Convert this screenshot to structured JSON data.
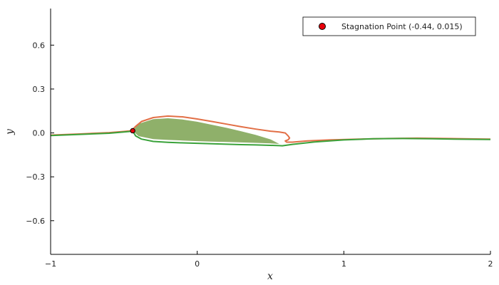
{
  "chart_data": {
    "type": "line",
    "xlabel": "x",
    "ylabel": "y",
    "xlim": [
      -1,
      2
    ],
    "ylim": [
      -0.83,
      0.85
    ],
    "x_ticks": [
      -1,
      0,
      1,
      2
    ],
    "x_tick_labels": [
      "−1",
      "0",
      "1",
      "2"
    ],
    "y_ticks": [
      -0.6,
      -0.3,
      0.0,
      0.3,
      0.6
    ],
    "y_tick_labels": [
      "−0.6",
      "−0.3",
      "0.0",
      "0.3",
      "0.6"
    ],
    "grid": false,
    "legend_position": "top-right",
    "colors": {
      "upper_streamline": "#e26f46",
      "lower_streamline": "#3aa23a",
      "airfoil_fill": "#8fb06a",
      "stagnation_point": "#e8000b"
    },
    "airfoil": {
      "upper_surface": {
        "x": [
          -0.44,
          -0.4,
          -0.3,
          -0.2,
          -0.1,
          0.0,
          0.1,
          0.2,
          0.3,
          0.4,
          0.5,
          0.56
        ],
        "y": [
          0.015,
          0.062,
          0.094,
          0.1,
          0.092,
          0.076,
          0.056,
          0.035,
          0.011,
          -0.014,
          -0.044,
          -0.075
        ]
      },
      "lower_surface": {
        "x": [
          -0.44,
          -0.4,
          -0.3,
          -0.2,
          -0.1,
          0.0,
          0.1,
          0.2,
          0.3,
          0.4,
          0.5,
          0.56
        ],
        "y": [
          0.015,
          -0.022,
          -0.042,
          -0.048,
          -0.052,
          -0.056,
          -0.059,
          -0.062,
          -0.065,
          -0.068,
          -0.072,
          -0.075
        ]
      }
    },
    "series": [
      {
        "x": [
          -1.0,
          -0.8,
          -0.6,
          -0.5,
          -0.45,
          -0.42,
          -0.38,
          -0.3,
          -0.2,
          -0.1,
          0.0,
          0.1,
          0.2,
          0.3,
          0.4,
          0.5,
          0.56,
          0.6,
          0.62,
          0.63,
          0.62,
          0.6,
          0.61,
          0.65,
          0.75,
          0.9,
          1.1,
          1.3,
          1.5,
          1.7,
          1.9,
          2.0
        ],
        "y": [
          -0.015,
          -0.007,
          0.002,
          0.01,
          0.015,
          0.045,
          0.078,
          0.105,
          0.115,
          0.11,
          0.095,
          0.078,
          0.06,
          0.042,
          0.026,
          0.012,
          0.006,
          0.0,
          -0.02,
          -0.035,
          -0.047,
          -0.055,
          -0.063,
          -0.063,
          -0.055,
          -0.048,
          -0.042,
          -0.038,
          -0.036,
          -0.038,
          -0.041,
          -0.042
        ]
      },
      {
        "x": [
          -1.0,
          -0.8,
          -0.6,
          -0.5,
          -0.44,
          -0.42,
          -0.38,
          -0.3,
          -0.2,
          -0.1,
          0.0,
          0.1,
          0.2,
          0.3,
          0.4,
          0.5,
          0.56,
          0.58,
          0.65,
          0.8,
          1.0,
          1.2,
          1.4,
          1.6,
          1.8,
          2.0
        ],
        "y": [
          -0.018,
          -0.01,
          -0.002,
          0.006,
          0.012,
          -0.02,
          -0.042,
          -0.058,
          -0.064,
          -0.068,
          -0.071,
          -0.074,
          -0.077,
          -0.08,
          -0.082,
          -0.085,
          -0.087,
          -0.088,
          -0.078,
          -0.062,
          -0.048,
          -0.04,
          -0.038,
          -0.04,
          -0.043,
          -0.045
        ]
      }
    ],
    "stagnation_point": {
      "x": -0.44,
      "y": 0.015
    },
    "legend": [
      "Stagnation Point (-0.44, 0.015)"
    ]
  }
}
